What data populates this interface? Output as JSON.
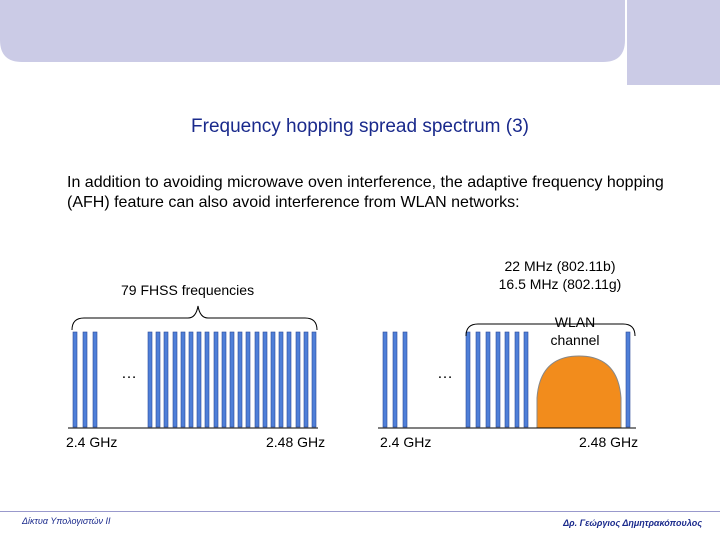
{
  "slide": {
    "title": "Frequency hopping spread spectrum (3)",
    "body": "In addition to avoiding microwave oven interference, the adaptive frequency hopping (AFH) feature can also avoid interference from WLAN networks:"
  },
  "diagram": {
    "left_label": "79 FHSS frequencies",
    "bandwidth_line1": "22 MHz (802.11b)",
    "bandwidth_line2": "16.5 MHz (802.11g)",
    "wlan_line1": "WLAN",
    "wlan_line2": "channel",
    "ellipsis": "…",
    "freq_low": "2.4 GHz",
    "freq_high": "2.48 GHz",
    "colors": {
      "bar": "#4f7fd8",
      "wlan_fill": "#f28c1c",
      "banner": "#cbcbe6"
    }
  },
  "footer": {
    "left": "Δίκτυα Υπολογιστών ΙΙ",
    "right": "Δρ. Γεώργιος Δημητρακόπουλος"
  }
}
